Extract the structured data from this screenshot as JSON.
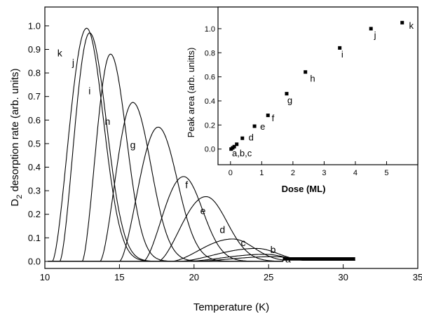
{
  "chart_data": [
    {
      "type": "line",
      "xlabel": "Temperature (K)",
      "ylabel_main": "D",
      "ylabel_sub": "2",
      "ylabel_rest": " desorption rate (arb. units)",
      "xlim": [
        10,
        35
      ],
      "ylim": [
        -0.03,
        1.08
      ],
      "xticks": [
        10,
        15,
        20,
        25,
        30,
        35
      ],
      "xtick_labels": [
        "10",
        "15",
        "20",
        "25",
        "30",
        "35"
      ],
      "yticks": [
        0.0,
        0.1,
        0.2,
        0.3,
        0.4,
        0.5,
        0.6,
        0.7,
        0.8,
        0.9,
        1.0
      ],
      "ytick_labels": [
        "0.0",
        "0.1",
        "0.2",
        "0.3",
        "0.4",
        "0.5",
        "0.6",
        "0.7",
        "0.8",
        "0.9",
        "1.0"
      ],
      "x_end": 30.8,
      "tail_curve": [
        [
          12.9,
          0.99
        ],
        [
          14.5,
          0.88
        ],
        [
          16,
          0.75
        ],
        [
          18,
          0.59
        ],
        [
          20,
          0.43
        ],
        [
          22,
          0.28
        ],
        [
          24,
          0.13
        ],
        [
          25.5,
          0.05
        ],
        [
          26.5,
          0.02
        ],
        [
          27.5,
          0.01
        ],
        [
          30.8,
          0.005
        ]
      ],
      "series": [
        {
          "name": "a",
          "onset": 20.0,
          "peak_x": 25.3,
          "peak_y": 0.02,
          "width": 2.0,
          "label": "a",
          "label_x": 26.3,
          "label_y": -0.005
        },
        {
          "name": "b",
          "onset": 19.5,
          "peak_x": 24.8,
          "peak_y": 0.03,
          "width": 1.8,
          "label": "b",
          "label_x": 25.3,
          "label_y": 0.035
        },
        {
          "name": "c",
          "onset": 19.0,
          "peak_x": 24.2,
          "peak_y": 0.055,
          "width": 2.0,
          "label": "c",
          "label_x": 23.3,
          "label_y": 0.065
        },
        {
          "name": "d",
          "onset": 18.5,
          "peak_x": 22.6,
          "peak_y": 0.095,
          "width": 2.0,
          "label": "d",
          "label_x": 21.9,
          "label_y": 0.12
        },
        {
          "name": "e",
          "onset": 17.6,
          "peak_x": 20.8,
          "peak_y": 0.275,
          "width": 2.0,
          "label": "e",
          "label_x": 20.6,
          "label_y": 0.2
        },
        {
          "name": "f",
          "onset": 16.6,
          "peak_x": 19.3,
          "peak_y": 0.36,
          "width": 1.8,
          "label": "f",
          "label_x": 19.5,
          "label_y": 0.31
        },
        {
          "name": "g",
          "onset": 15.0,
          "peak_x": 17.6,
          "peak_y": 0.57,
          "width": 1.8,
          "label": "g",
          "label_x": 15.9,
          "label_y": 0.48
        },
        {
          "name": "h",
          "onset": 13.7,
          "peak_x": 15.9,
          "peak_y": 0.675,
          "width": 1.7,
          "label": "h",
          "label_x": 14.2,
          "label_y": 0.58
        },
        {
          "name": "i",
          "onset": 12.5,
          "peak_x": 14.4,
          "peak_y": 0.88,
          "width": 1.5,
          "label": "i",
          "label_x": 13.0,
          "label_y": 0.71
        },
        {
          "name": "j",
          "onset": 11.0,
          "peak_x": 13.0,
          "peak_y": 0.97,
          "width": 1.6,
          "label": "j",
          "label_x": 11.9,
          "label_y": 0.83
        },
        {
          "name": "k",
          "onset": 10.5,
          "peak_x": 12.8,
          "peak_y": 0.99,
          "width": 1.6,
          "label": "k",
          "label_x": 11.0,
          "label_y": 0.87
        }
      ]
    },
    {
      "type": "scatter",
      "xlabel": "Dose (ML)",
      "ylabel": "Peak area (arb. unitts)",
      "xlim": [
        -0.4,
        6
      ],
      "ylim": [
        -0.13,
        1.18
      ],
      "xticks": [
        0,
        1,
        2,
        3,
        4,
        5
      ],
      "xtick_labels": [
        "0",
        "1",
        "2",
        "3",
        "4",
        "5"
      ],
      "yticks": [
        0.0,
        0.2,
        0.4,
        0.6,
        0.8,
        1.0
      ],
      "ytick_labels": [
        "0.0",
        "0.2",
        "0.4",
        "0.6",
        "0.8",
        "1.0"
      ],
      "points": [
        {
          "x": 0.02,
          "y": 0.0
        },
        {
          "x": 0.07,
          "y": 0.01
        },
        {
          "x": 0.12,
          "y": 0.02
        },
        {
          "x": 0.2,
          "y": 0.04
        },
        {
          "x": 0.38,
          "y": 0.09
        },
        {
          "x": 0.77,
          "y": 0.19
        },
        {
          "x": 1.2,
          "y": 0.28
        },
        {
          "x": 1.8,
          "y": 0.46
        },
        {
          "x": 2.4,
          "y": 0.64
        },
        {
          "x": 3.5,
          "y": 0.84
        },
        {
          "x": 4.5,
          "y": 1.0
        },
        {
          "x": 5.5,
          "y": 1.05
        }
      ],
      "labels": [
        {
          "text": "a,b,c",
          "x": 0.05,
          "y": -0.06
        },
        {
          "text": "d",
          "x": 0.58,
          "y": 0.07
        },
        {
          "text": "e",
          "x": 0.95,
          "y": 0.16
        },
        {
          "text": "f",
          "x": 1.32,
          "y": 0.23
        },
        {
          "text": "g",
          "x": 1.82,
          "y": 0.38
        },
        {
          "text": "h",
          "x": 2.55,
          "y": 0.56
        },
        {
          "text": "i",
          "x": 3.55,
          "y": 0.76
        },
        {
          "text": "j",
          "x": 4.6,
          "y": 0.92
        },
        {
          "text": "k",
          "x": 5.72,
          "y": 1.0
        }
      ]
    }
  ]
}
